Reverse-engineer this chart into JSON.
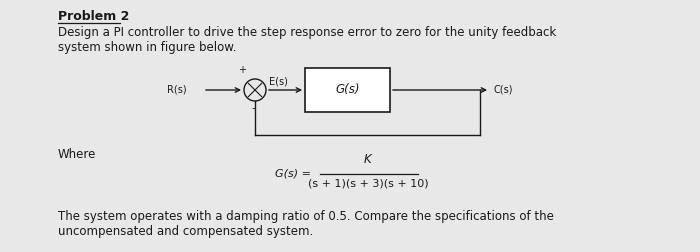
{
  "title": "Problem 2",
  "line1": "Design a PI controller to drive the step response error to zero for the unity feedback",
  "line2": "system shown in figure below.",
  "where_label": "Where",
  "gs_label": "G(s) =",
  "numerator": "K",
  "denominator": "(s + 1)(s + 3)(s + 10)",
  "footer1": "The system operates with a damping ratio of 0.5. Compare the specifications of the",
  "footer2": "uncompensated and compensated system.",
  "Rs_label": "R(s)",
  "Es_label": "E(s)",
  "Cs_label": "C(s)",
  "Gs_box_label": "G(s)",
  "plus_label": "+",
  "minus_label": "-",
  "bg_color": "#e8e8e8",
  "text_color": "#1a1a1a",
  "diagram_bg": "white"
}
